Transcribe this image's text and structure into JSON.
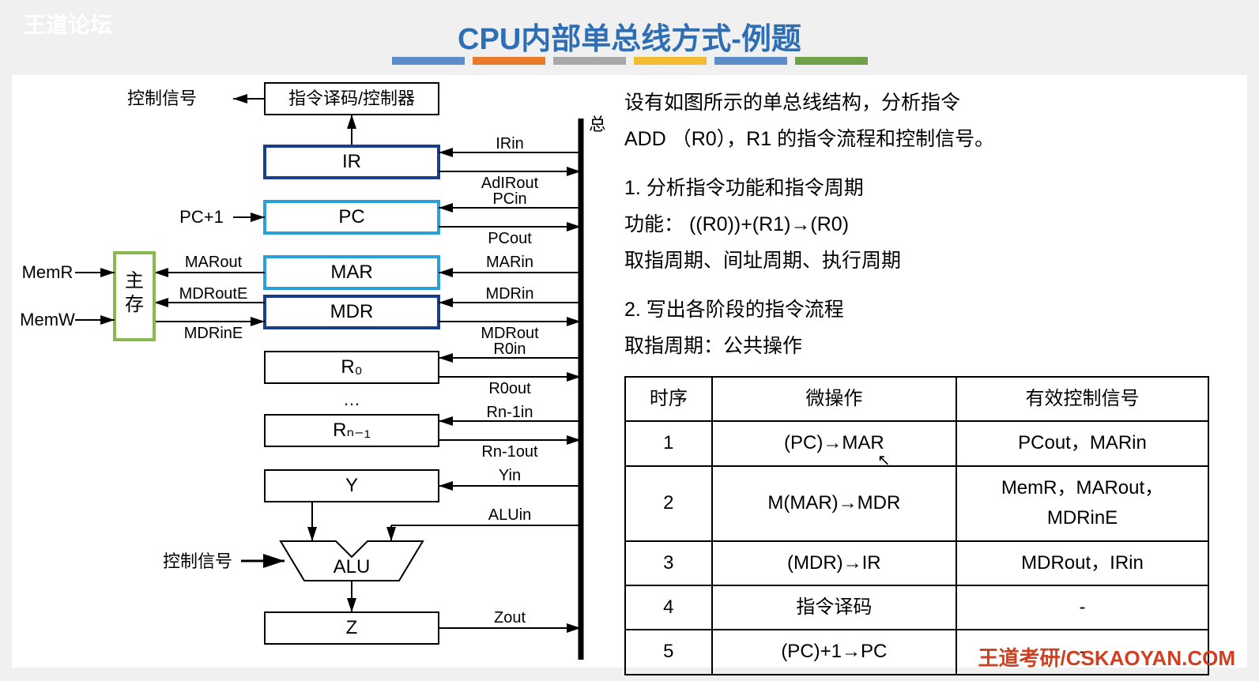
{
  "watermark": "王道论坛",
  "title": {
    "text": "CPU内部单总线方式-例题",
    "color": "#2e6eb5"
  },
  "colorBars": [
    "#5b8dc9",
    "#e87b2a",
    "#a8a8a8",
    "#f2bb30",
    "#5b8dc9",
    "#6fa04a"
  ],
  "diagram": {
    "busLabel": "总线",
    "ctrlSignalLeft": "控制信号",
    "ctrlSignalBottom": "控制信号",
    "decoder": "指令译码/控制器",
    "memBox": "主\n存",
    "memR": "MemR",
    "memW": "MemW",
    "pcPlus1": "PC+1",
    "marOut": "MARout",
    "mdrRoutE": "MDRoutE",
    "mdrInE": "MDRinE",
    "dots": "…",
    "boxes": {
      "ir": "IR",
      "pc": "PC",
      "mar": "MAR",
      "mdr": "MDR",
      "r0": "R₀",
      "rn1": "Rₙ₋₁",
      "y": "Y",
      "alu": "ALU",
      "z": "Z"
    },
    "signals": {
      "irin": "IRin",
      "adirout": "AdIRout",
      "pcin": "PCin",
      "pcout": "PCout",
      "marin": "MARin",
      "mdrin": "MDRin",
      "mdrout": "MDRout",
      "r0in": "R0in",
      "r0out": "R0out",
      "rn1in": "Rn-1in",
      "rn1out": "Rn-1out",
      "yin": "Yin",
      "aluin": "ALUin",
      "zout": "Zout"
    },
    "colors": {
      "irBox": "#1a3f8a",
      "pcBox": "#2aa0d8",
      "marBox": "#2aa0d8",
      "mdrBox": "#1a3f8a",
      "memBox": "#8ab850",
      "black": "#000000"
    }
  },
  "question": {
    "line1": "设有如图所示的单总线结构，分析指令",
    "line2": "ADD （R0），R1  的指令流程和控制信号。",
    "step1": "1.  分析指令功能和指令周期",
    "func": "功能： ((R0))+(R1)→(R0)",
    "cycles": "取指周期、间址周期、执行周期",
    "step2": "2.  写出各阶段的指令流程",
    "fetch": "取指周期：公共操作"
  },
  "table": {
    "headers": [
      "时序",
      "微操作",
      "有效控制信号"
    ],
    "rows": [
      [
        "1",
        "(PC)→MAR",
        "PCout，MARin"
      ],
      [
        "2",
        "M(MAR)→MDR",
        "MemR，MARout，MDRinE"
      ],
      [
        "3",
        "(MDR)→IR",
        "MDRout，IRin"
      ],
      [
        "4",
        "指令译码",
        "-"
      ],
      [
        "5",
        "(PC)+1→PC",
        "-"
      ]
    ],
    "colWidths": [
      "110px",
      "310px",
      "320px"
    ]
  },
  "footer": {
    "text": "王道考研/CSKAOYAN.COM",
    "color": "#d04020"
  }
}
